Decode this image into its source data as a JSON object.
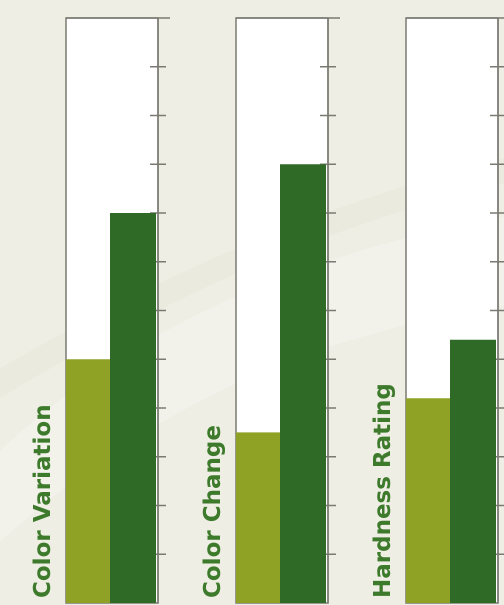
{
  "colors": {
    "background": "#eeeee4",
    "panel_fill": "#ffffff",
    "panel_stroke": "#7a7a72",
    "bar_light": "#8fa226",
    "bar_dark": "#2f6b26",
    "label_text": "#3d7a2b"
  },
  "chart_data": {
    "type": "bar",
    "ylim": [
      0,
      12
    ],
    "grid": false,
    "legend": "none",
    "categories": [
      "Color Variation",
      "Color Change",
      "Hardness Rating"
    ],
    "series": [
      {
        "values": [
          5,
          3.5,
          4.2
        ]
      },
      {
        "values": [
          8,
          9,
          5.4
        ]
      }
    ]
  }
}
